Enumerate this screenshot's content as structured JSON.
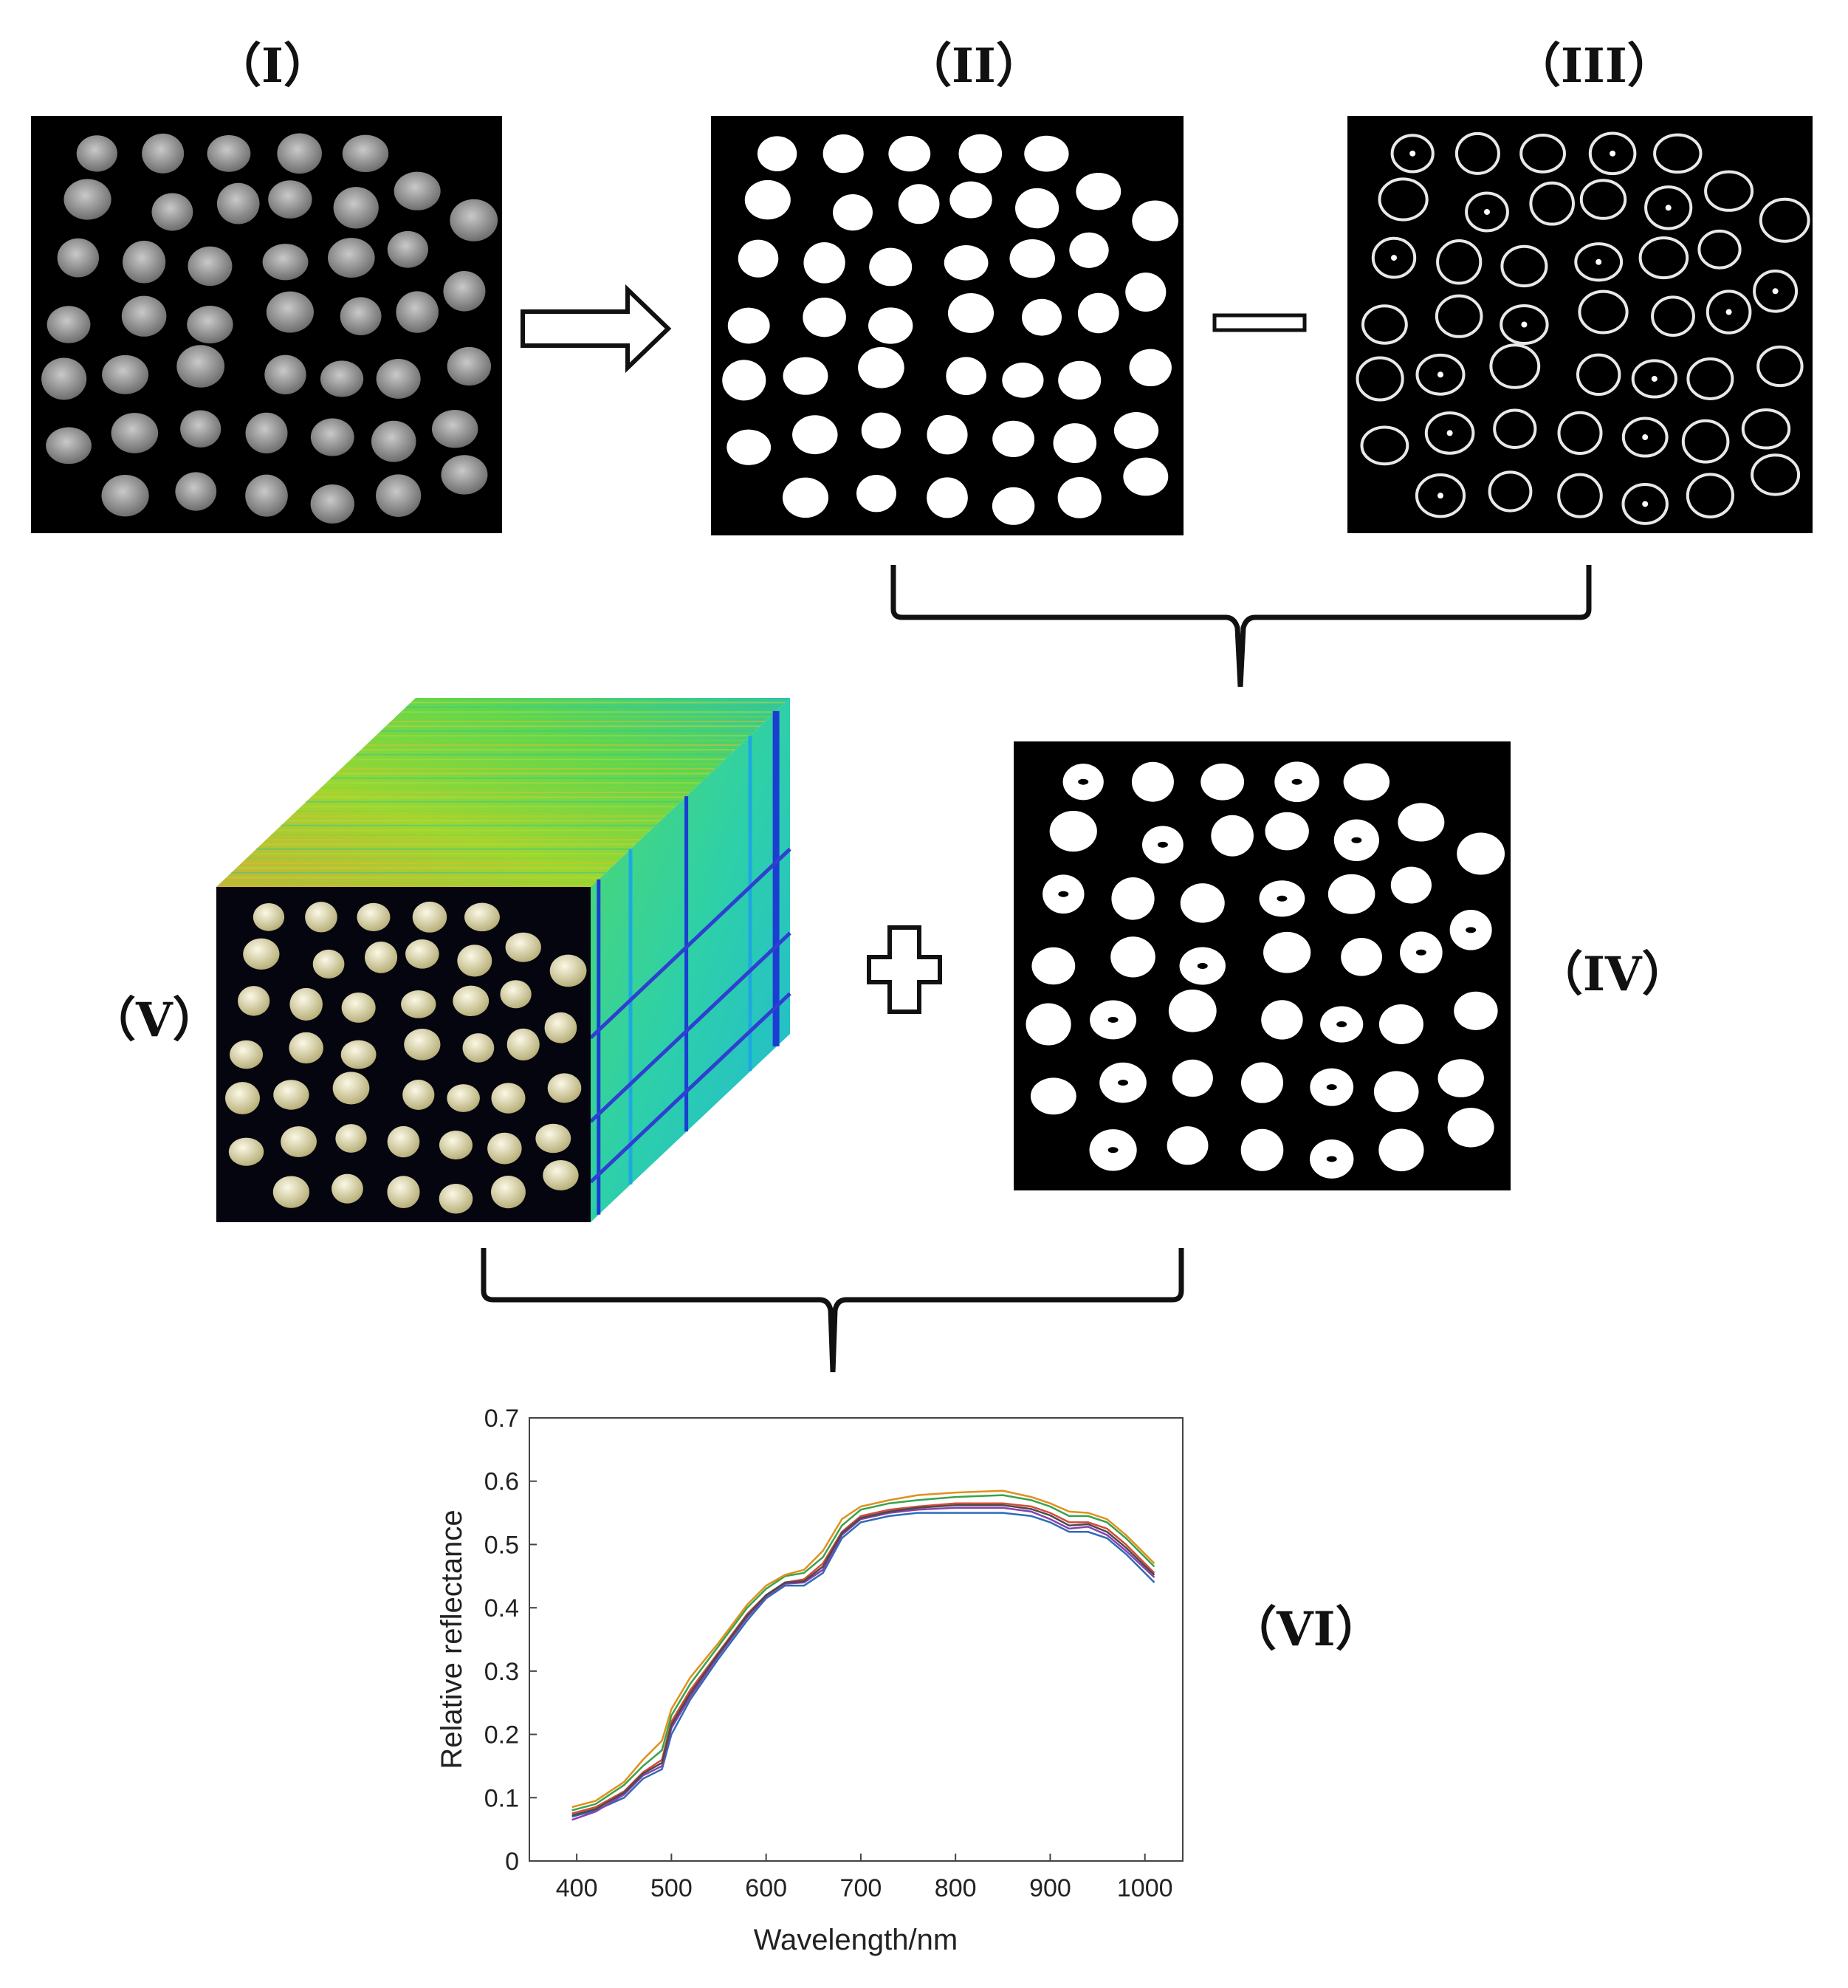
{
  "labels": {
    "I": "（I）",
    "II": "（II）",
    "III": "（III）",
    "IV": "（IV）",
    "V": "（V）",
    "VI": "（VI）"
  },
  "colors": {
    "background": "#000000",
    "blob_gray": "#9a9a9a",
    "blob_white": "#ffffff",
    "ring": "#e8e8e8",
    "cube_top": "#9fd630",
    "cube_side": "#36d39a",
    "cube_stripe": "#1a3fd0",
    "seed": "#e9e4c6"
  },
  "operators": {
    "arrow": "arrow-right-icon",
    "minus": "minus-icon",
    "plus": "plus-icon"
  },
  "chart_data": {
    "type": "line",
    "xlabel": "Wavelength/nm",
    "ylabel": "Relative reflectance",
    "xlim": [
      350,
      1040
    ],
    "ylim": [
      0,
      0.7
    ],
    "xticks": [
      400,
      500,
      600,
      700,
      800,
      900,
      1000
    ],
    "yticks": [
      0,
      0.1,
      0.2,
      0.3,
      0.4,
      0.5,
      0.6,
      0.7
    ],
    "grid": false,
    "x": [
      395,
      420,
      450,
      470,
      490,
      500,
      520,
      550,
      580,
      600,
      620,
      640,
      660,
      680,
      700,
      730,
      760,
      800,
      850,
      880,
      900,
      920,
      940,
      960,
      980,
      1000,
      1010
    ],
    "series": [
      {
        "values": [
          0.075,
          0.085,
          0.11,
          0.14,
          0.16,
          0.22,
          0.27,
          0.33,
          0.39,
          0.42,
          0.44,
          0.445,
          0.47,
          0.52,
          0.545,
          0.555,
          0.56,
          0.565,
          0.565,
          0.56,
          0.55,
          0.535,
          0.535,
          0.525,
          0.5,
          0.47,
          0.455
        ]
      },
      {
        "values": [
          0.07,
          0.08,
          0.1,
          0.13,
          0.145,
          0.2,
          0.255,
          0.32,
          0.38,
          0.415,
          0.435,
          0.435,
          0.455,
          0.51,
          0.535,
          0.545,
          0.55,
          0.55,
          0.55,
          0.545,
          0.535,
          0.52,
          0.52,
          0.51,
          0.485,
          0.455,
          0.44
        ]
      },
      {
        "values": [
          0.08,
          0.09,
          0.12,
          0.15,
          0.175,
          0.23,
          0.28,
          0.34,
          0.4,
          0.43,
          0.45,
          0.455,
          0.48,
          0.53,
          0.555,
          0.565,
          0.57,
          0.575,
          0.578,
          0.57,
          0.56,
          0.545,
          0.545,
          0.535,
          0.51,
          0.48,
          0.465
        ]
      },
      {
        "values": [
          0.065,
          0.078,
          0.105,
          0.135,
          0.15,
          0.21,
          0.26,
          0.325,
          0.385,
          0.418,
          0.438,
          0.44,
          0.46,
          0.515,
          0.54,
          0.55,
          0.555,
          0.558,
          0.558,
          0.552,
          0.54,
          0.525,
          0.528,
          0.515,
          0.49,
          0.462,
          0.448
        ]
      },
      {
        "values": [
          0.085,
          0.095,
          0.125,
          0.16,
          0.19,
          0.24,
          0.29,
          0.345,
          0.405,
          0.435,
          0.452,
          0.46,
          0.49,
          0.54,
          0.56,
          0.57,
          0.578,
          0.582,
          0.585,
          0.575,
          0.565,
          0.552,
          0.55,
          0.54,
          0.515,
          0.485,
          0.47
        ]
      },
      {
        "values": [
          0.072,
          0.082,
          0.108,
          0.138,
          0.155,
          0.215,
          0.265,
          0.328,
          0.388,
          0.42,
          0.44,
          0.442,
          0.465,
          0.518,
          0.542,
          0.552,
          0.558,
          0.562,
          0.562,
          0.556,
          0.546,
          0.53,
          0.532,
          0.52,
          0.495,
          0.466,
          0.452
        ]
      }
    ]
  }
}
